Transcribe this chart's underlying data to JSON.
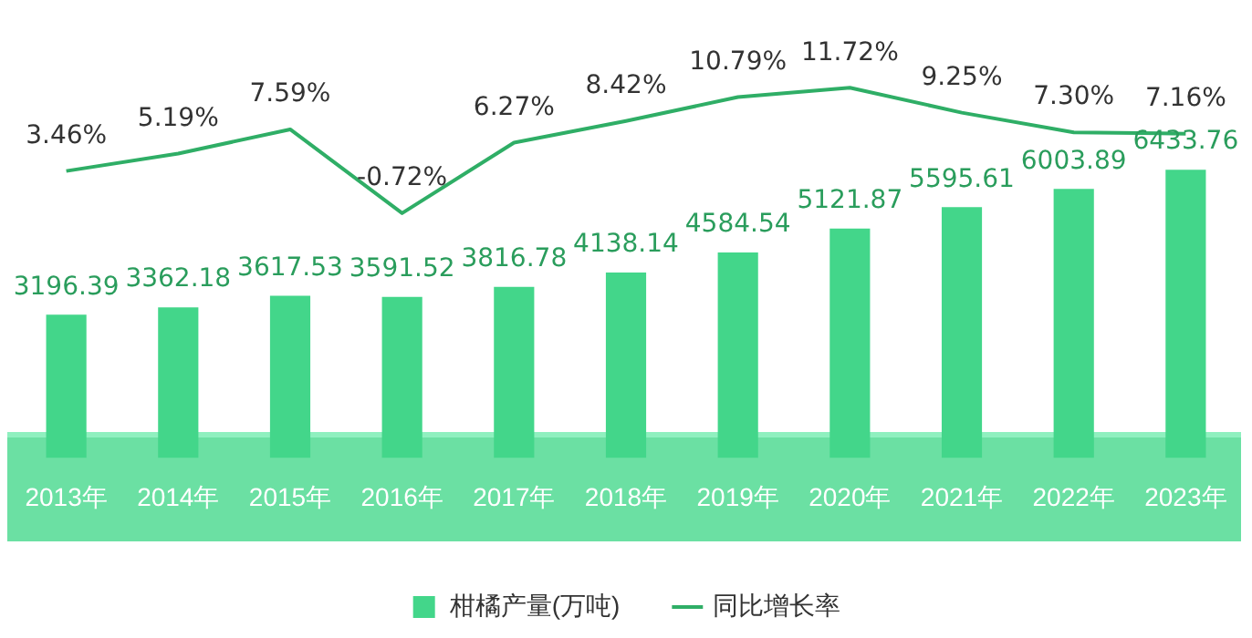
{
  "chart_data": {
    "type": "bar",
    "categories": [
      "2013年",
      "2014年",
      "2015年",
      "2016年",
      "2017年",
      "2018年",
      "2019年",
      "2020年",
      "2021年",
      "2022年",
      "2023年"
    ],
    "series": [
      {
        "name": "柑橘产量(万吨)",
        "color": "#43d68a",
        "values": [
          3196.39,
          3362.18,
          3617.53,
          3591.52,
          3816.78,
          4138.14,
          4584.54,
          5121.87,
          5595.61,
          6003.89,
          6433.76
        ]
      },
      {
        "name": "同比增长率",
        "type": "line",
        "axis": "y2",
        "color": "#2fae66",
        "values": [
          3.46,
          5.19,
          7.59,
          -0.72,
          6.27,
          8.42,
          10.79,
          11.72,
          9.25,
          7.3,
          7.16
        ],
        "value_labels": [
          "3.46%",
          "5.19%",
          "7.59%",
          "-0.72%",
          "6.27%",
          "8.42%",
          "10.79%",
          "11.72%",
          "9.25%",
          "7.30%",
          "7.16%"
        ]
      }
    ],
    "tick_labels": "x",
    "data_labels": true,
    "grid": false,
    "legend": "bottom",
    "marker": "none"
  }
}
